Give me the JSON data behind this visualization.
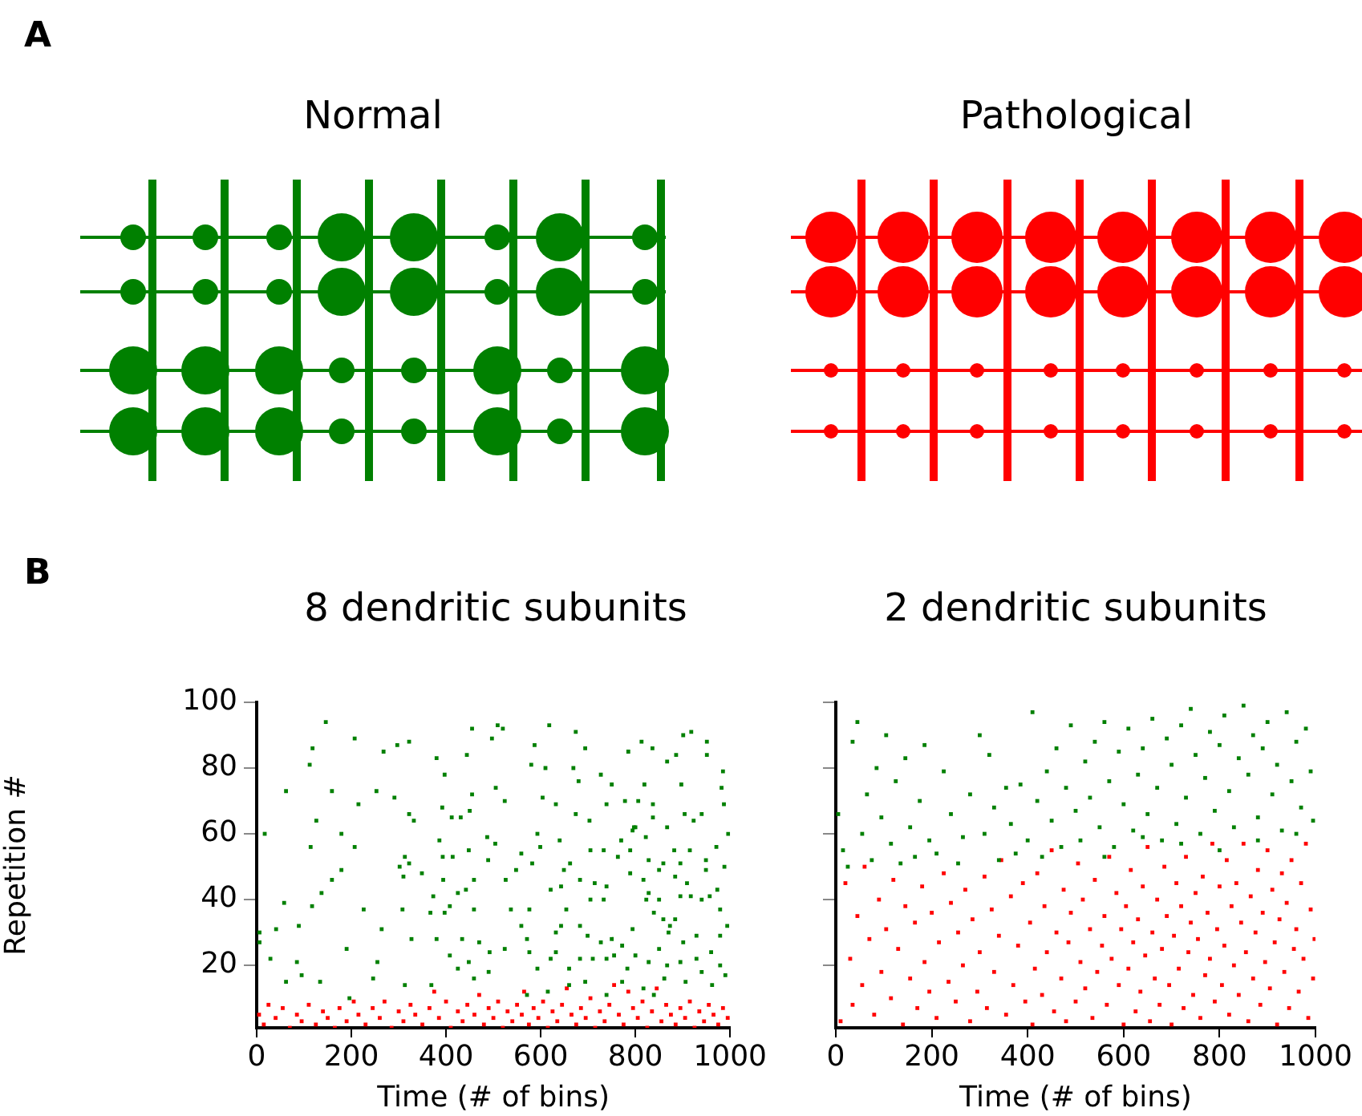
{
  "chart_data": [
    {
      "type": "other",
      "title": "Normal",
      "annotations": [
        "A"
      ]
    },
    {
      "type": "other",
      "title": "Pathological"
    },
    {
      "type": "scatter",
      "title": "8 dendritic subunits",
      "xlabel": "Time (# of bins)",
      "ylabel": "Repetition #",
      "xlim": [
        0,
        1000
      ],
      "xticks": [
        0,
        200,
        400,
        600,
        800,
        1000
      ],
      "ylim": [
        1,
        100
      ],
      "yticks": [
        20,
        40,
        60,
        80,
        100
      ],
      "marker": "square",
      "annotations": [
        "B"
      ],
      "series": [
        {
          "color": "#008000",
          "x": [
            146,
            118,
            112,
            62,
            17,
            126,
            159,
            207,
            268,
            297,
            322,
            253,
            291,
            215,
            322,
            332,
            179,
            114,
            179,
            207,
            159,
            137,
            58,
            117,
            41,
            89,
            226,
            264,
            190,
            29,
            85,
            95,
            62,
            6,
            6,
            380,
            397,
            455,
            444,
            497,
            509,
            520,
            505,
            524,
            455,
            450,
            431,
            392,
            412,
            386,
            393,
            414,
            448,
            487,
            504,
            489,
            313,
            322,
            302,
            310,
            349,
            394,
            425,
            459,
            442,
            373,
            408,
            308,
            367,
            397,
            459,
            526,
            548,
            537,
            576,
            559,
            327,
            380,
            434,
            470,
            492,
            524,
            571,
            408,
            448,
            425,
            459,
            490,
            313,
            369,
            255,
            246,
            196,
            134,
            587,
            618,
            674,
            694,
            727,
            680,
            669,
            610,
            632,
            604,
            674,
            703,
            580,
            593,
            640,
            599,
            559,
            582,
            649,
            662,
            705,
            733,
            770,
            794,
            800,
            822,
            789,
            828,
            859,
            882,
            915,
            895,
            949,
            971,
            988,
            996,
            987,
            982,
            985,
            951,
            951,
            918,
            901,
            886,
            867,
            836,
            813,
            785,
            819,
            806,
            837,
            837,
            797,
            778,
            739,
            750,
            897,
            904,
            923,
            940,
            867,
            763,
            789,
            817,
            850,
            884,
            909,
            949,
            973,
            994,
            979,
            828,
            823,
            850,
            895,
            917,
            940,
            957,
            739,
            714,
            683,
            643,
            621,
            705,
            733,
            654,
            683,
            643,
            632,
            699,
            727,
            750,
            794,
            839,
            859,
            873,
            884,
            870,
            901,
            929,
            979,
            960,
            979,
            990,
            929,
            895,
            867,
            850,
            828,
            800,
            772,
            783,
            755,
            739,
            710,
            683,
            660,
            632,
            621,
            593,
            576,
            940,
            962,
            906,
            861,
            839,
            817,
            772,
            739,
            694,
            660,
            615,
            571
          ],
          "values": [
            94,
            86,
            81,
            73,
            60,
            64,
            73,
            89,
            85,
            87,
            88,
            73,
            71,
            69,
            66,
            64,
            60,
            56,
            49,
            56,
            46,
            42,
            39,
            38,
            31,
            32,
            37,
            31,
            25,
            22,
            21,
            17,
            15,
            30,
            27,
            83,
            78,
            92,
            84,
            89,
            93,
            92,
            74,
            70,
            72,
            67,
            65,
            68,
            65,
            58,
            53,
            53,
            55,
            59,
            57,
            52,
            53,
            51,
            50,
            47,
            48,
            46,
            42,
            46,
            43,
            41,
            38,
            37,
            36,
            36,
            37,
            46,
            49,
            37,
            37,
            32,
            28,
            28,
            28,
            27,
            24,
            25,
            28,
            23,
            21,
            19,
            16,
            18,
            14,
            14,
            21,
            16,
            10,
            15,
            87,
            93,
            91,
            86,
            78,
            76,
            80,
            80,
            69,
            71,
            66,
            64,
            81,
            60,
            58,
            56,
            54,
            51,
            49,
            51,
            55,
            55,
            58,
            61,
            62,
            59,
            55,
            52,
            51,
            55,
            55,
            51,
            52,
            56,
            50,
            60,
            69,
            74,
            79,
            84,
            88,
            91,
            90,
            84,
            82,
            86,
            88,
            85,
            75,
            70,
            69,
            65,
            62,
            70,
            69,
            75,
            75,
            66,
            64,
            66,
            62,
            53,
            48,
            46,
            49,
            47,
            45,
            49,
            43,
            32,
            37,
            42,
            40,
            40,
            41,
            41,
            40,
            41,
            44,
            45,
            46,
            44,
            43,
            40,
            40,
            37,
            32,
            32,
            30,
            29,
            27,
            28,
            31,
            36,
            34,
            32,
            34,
            30,
            27,
            29,
            29,
            24,
            20,
            17,
            22,
            21,
            20,
            25,
            21,
            23,
            26,
            19,
            23,
            22,
            22,
            22,
            19,
            24,
            22,
            19,
            24,
            18,
            14,
            15,
            16,
            11,
            13,
            15,
            11,
            15,
            14,
            12,
            11
          ]
        },
        {
          "color": "#ff0000",
          "x": [
            5,
            15,
            25,
            40,
            55,
            70,
            85,
            95,
            110,
            125,
            140,
            150,
            165,
            175,
            190,
            205,
            215,
            230,
            245,
            260,
            270,
            285,
            300,
            310,
            325,
            335,
            350,
            365,
            375,
            385,
            400,
            410,
            425,
            435,
            445,
            460,
            470,
            480,
            490,
            500,
            510,
            520,
            530,
            540,
            550,
            560,
            565,
            575,
            585,
            595,
            605,
            615,
            625,
            635,
            645,
            655,
            665,
            675,
            685,
            695,
            705,
            715,
            725,
            735,
            745,
            755,
            765,
            775,
            785,
            795,
            805,
            815,
            825,
            835,
            845,
            855,
            865,
            875,
            885,
            895,
            905,
            915,
            925,
            935,
            945,
            955,
            965,
            975,
            985,
            995
          ],
          "values": [
            5,
            2,
            8,
            4,
            7,
            1,
            5,
            3,
            8,
            2,
            6,
            4,
            1,
            7,
            3,
            9,
            5,
            2,
            7,
            4,
            9,
            1,
            6,
            3,
            8,
            5,
            2,
            7,
            12,
            4,
            9,
            1,
            6,
            3,
            8,
            5,
            11,
            2,
            7,
            4,
            9,
            1,
            6,
            3,
            8,
            5,
            12,
            2,
            7,
            4,
            9,
            1,
            6,
            3,
            8,
            13,
            5,
            2,
            7,
            4,
            10,
            1,
            6,
            3,
            8,
            14,
            5,
            2,
            12,
            7,
            4,
            9,
            1,
            6,
            13,
            3,
            8,
            5,
            2,
            7,
            4,
            9,
            1,
            6,
            3,
            8,
            5,
            2,
            7,
            4
          ]
        }
      ]
    },
    {
      "type": "scatter",
      "title": "2 dendritic subunits",
      "xlabel": "Time (# of bins)",
      "xlim": [
        0,
        1000
      ],
      "xticks": [
        0,
        200,
        400,
        600,
        800,
        1000
      ],
      "ylim": [
        1,
        100
      ],
      "yticks": [
        20,
        40,
        60,
        80,
        100
      ],
      "tick_labels": "x",
      "marker": "square",
      "series": [
        {
          "color": "#008000",
          "x": [
            5,
            15,
            25,
            35,
            45,
            55,
            65,
            75,
            85,
            95,
            105,
            115,
            125,
            135,
            145,
            155,
            165,
            175,
            185,
            195,
            210,
            225,
            240,
            255,
            265,
            280,
            300,
            310,
            320,
            330,
            340,
            355,
            365,
            375,
            385,
            400,
            410,
            420,
            430,
            440,
            450,
            460,
            470,
            480,
            490,
            500,
            510,
            520,
            530,
            540,
            550,
            560,
            570,
            580,
            590,
            600,
            610,
            620,
            630,
            640,
            650,
            660,
            670,
            680,
            690,
            700,
            710,
            720,
            730,
            740,
            750,
            760,
            770,
            780,
            790,
            800,
            810,
            820,
            830,
            840,
            850,
            860,
            870,
            880,
            890,
            900,
            910,
            920,
            930,
            940,
            950,
            960,
            970,
            980,
            990,
            995,
            560,
            640,
            720,
            800,
            880,
            960
          ],
          "values": [
            66,
            55,
            50,
            88,
            94,
            60,
            72,
            52,
            80,
            65,
            90,
            57,
            76,
            51,
            83,
            62,
            53,
            70,
            87,
            58,
            54,
            79,
            66,
            51,
            59,
            72,
            90,
            60,
            84,
            68,
            52,
            74,
            63,
            54,
            75,
            58,
            97,
            70,
            53,
            79,
            64,
            86,
            56,
            74,
            93,
            67,
            58,
            82,
            71,
            88,
            62,
            94,
            76,
            56,
            85,
            69,
            92,
            61,
            78,
            86,
            66,
            95,
            74,
            58,
            89,
            81,
            63,
            93,
            71,
            98,
            84,
            60,
            77,
            91,
            67,
            87,
            96,
            73,
            62,
            83,
            99,
            78,
            90,
            65,
            86,
            94,
            72,
            81,
            61,
            97,
            76,
            88,
            68,
            92,
            79,
            64,
            53,
            59,
            57,
            55,
            58,
            60
          ]
        },
        {
          "color": "#ff0000",
          "x": [
            10,
            20,
            30,
            35,
            45,
            55,
            60,
            70,
            80,
            90,
            95,
            105,
            115,
            120,
            130,
            140,
            145,
            155,
            165,
            170,
            180,
            185,
            195,
            200,
            210,
            215,
            225,
            235,
            240,
            250,
            255,
            265,
            270,
            280,
            285,
            295,
            300,
            310,
            315,
            325,
            330,
            340,
            345,
            355,
            365,
            370,
            380,
            390,
            395,
            405,
            410,
            415,
            420,
            430,
            435,
            440,
            450,
            455,
            460,
            470,
            475,
            480,
            485,
            490,
            500,
            505,
            510,
            515,
            520,
            530,
            535,
            540,
            545,
            555,
            560,
            565,
            570,
            575,
            585,
            590,
            595,
            600,
            605,
            610,
            615,
            620,
            625,
            630,
            635,
            640,
            645,
            650,
            655,
            660,
            665,
            670,
            675,
            680,
            685,
            690,
            695,
            700,
            705,
            710,
            715,
            720,
            725,
            730,
            735,
            740,
            745,
            750,
            755,
            760,
            765,
            770,
            775,
            780,
            785,
            790,
            795,
            800,
            805,
            810,
            815,
            820,
            825,
            830,
            835,
            840,
            845,
            850,
            855,
            860,
            865,
            870,
            875,
            880,
            885,
            890,
            895,
            900,
            905,
            910,
            915,
            920,
            925,
            930,
            935,
            940,
            945,
            950,
            955,
            960,
            965,
            970,
            975,
            980,
            985,
            990,
            995,
            998
          ],
          "values": [
            3,
            45,
            22,
            8,
            35,
            14,
            50,
            28,
            5,
            40,
            18,
            31,
            10,
            46,
            25,
            2,
            38,
            16,
            33,
            7,
            44,
            21,
            12,
            36,
            4,
            27,
            48,
            15,
            39,
            9,
            30,
            20,
            43,
            3,
            34,
            12,
            24,
            47,
            7,
            37,
            18,
            29,
            52,
            5,
            41,
            14,
            26,
            45,
            9,
            33,
            2,
            19,
            48,
            11,
            38,
            24,
            55,
            6,
            30,
            16,
            43,
            3,
            27,
            36,
            9,
            51,
            21,
            40,
            13,
            31,
            4,
            46,
            18,
            26,
            35,
            8,
            53,
            22,
            42,
            14,
            31,
            2,
            38,
            19,
            49,
            27,
            6,
            34,
            12,
            44,
            23,
            56,
            3,
            30,
            16,
            40,
            8,
            25,
            50,
            35,
            14,
            2,
            29,
            45,
            19,
            38,
            7,
            53,
            24,
            33,
            11,
            42,
            28,
            4,
            47,
            17,
            36,
            22,
            57,
            9,
            31,
            44,
            14,
            26,
            52,
            5,
            38,
            20,
            45,
            11,
            33,
            57,
            24,
            3,
            41,
            16,
            30,
            49,
            8,
            36,
            21,
            55,
            13,
            43,
            27,
            2,
            34,
            48,
            18,
            39,
            7,
            52,
            25,
            31,
            12,
            45,
            22,
            57,
            4,
            37,
            16,
            28
          ]
        }
      ]
    }
  ]
}
